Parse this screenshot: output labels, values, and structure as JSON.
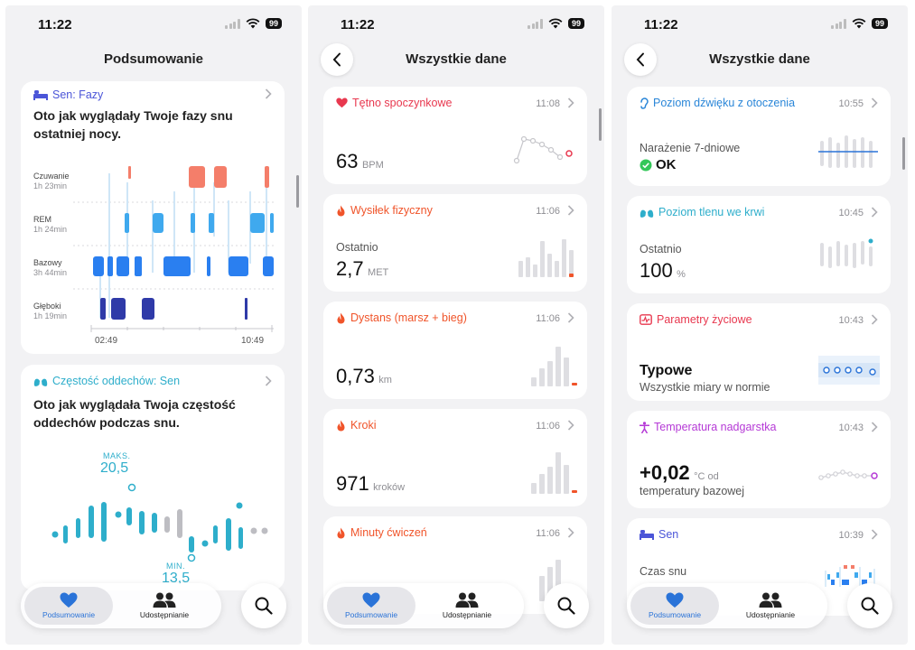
{
  "status": {
    "time": "11:22",
    "battery": "99"
  },
  "tabbar": {
    "summary_label": "Podsumowanie",
    "sharing_label": "Udostępnianie"
  },
  "screen1": {
    "title": "Podsumowanie",
    "sleep_card": {
      "header": "Sen: Fazy",
      "text": "Oto jak wyglądały Twoje fazy snu ostatniej nocy.",
      "stages": [
        {
          "name": "Czuwanie",
          "duration": "1h 23min"
        },
        {
          "name": "REM",
          "duration": "1h 24min"
        },
        {
          "name": "Bazowy",
          "duration": "3h 44min"
        },
        {
          "name": "Głęboki",
          "duration": "1h 19min"
        }
      ],
      "x_start": "02:49",
      "x_end": "10:49"
    },
    "resp_card": {
      "header": "Częstość oddechów: Sen",
      "text": "Oto jak wyglądała Twoja częstość oddechów podczas snu.",
      "max_label": "MAKS.",
      "max_value": "20,5",
      "min_label": "MIN.",
      "min_value": "13,5"
    }
  },
  "screen2": {
    "title": "Wszystkie dane",
    "cards": [
      {
        "header": "Tętno spoczynkowe",
        "time": "11:08",
        "label": "",
        "value": "63",
        "unit": "BPM"
      },
      {
        "header": "Wysiłek fizyczny",
        "time": "11:06",
        "label": "Ostatnio",
        "value": "2,7",
        "unit": "MET"
      },
      {
        "header": "Dystans (marsz + bieg)",
        "time": "11:06",
        "label": "",
        "value": "0,73",
        "unit": "km"
      },
      {
        "header": "Kroki",
        "time": "11:06",
        "label": "",
        "value": "971",
        "unit": "kroków"
      },
      {
        "header": "Minuty ćwiczeń",
        "time": "11:06",
        "label": "",
        "value": "",
        "unit": ""
      }
    ]
  },
  "screen3": {
    "title": "Wszystkie dane",
    "cards": [
      {
        "header": "Poziom dźwięku z otoczenia",
        "time": "10:55",
        "label": "Narażenie 7-dniowe",
        "value": "OK",
        "unit": ""
      },
      {
        "header": "Poziom tlenu we krwi",
        "time": "10:45",
        "label": "Ostatnio",
        "value": "100",
        "unit": "%"
      },
      {
        "header": "Parametry życiowe",
        "time": "10:43",
        "label": "Wszystkie miary w normie",
        "value": "Typowe",
        "unit": ""
      },
      {
        "header": "Temperatura nadgarstka",
        "time": "10:43",
        "label": "temperatury bazowej",
        "value": "+0,02",
        "unit": "°C od"
      },
      {
        "header": "Sen",
        "time": "10:39",
        "label": "Czas snu",
        "value": "",
        "unit": ""
      }
    ]
  },
  "colors": {
    "heart_red": "#e8384f",
    "activity_orange": "#f0542a",
    "sleep_blue": "#2a86d8",
    "respiratory_teal": "#2eaecb",
    "wrist_purple": "#b539d6",
    "tab_active_blue": "#2a73d8"
  },
  "icons": {
    "back": "chevron-left-icon",
    "search": "magnifier-icon",
    "summary_tab": "heart-icon",
    "sharing_tab": "people-icon"
  }
}
